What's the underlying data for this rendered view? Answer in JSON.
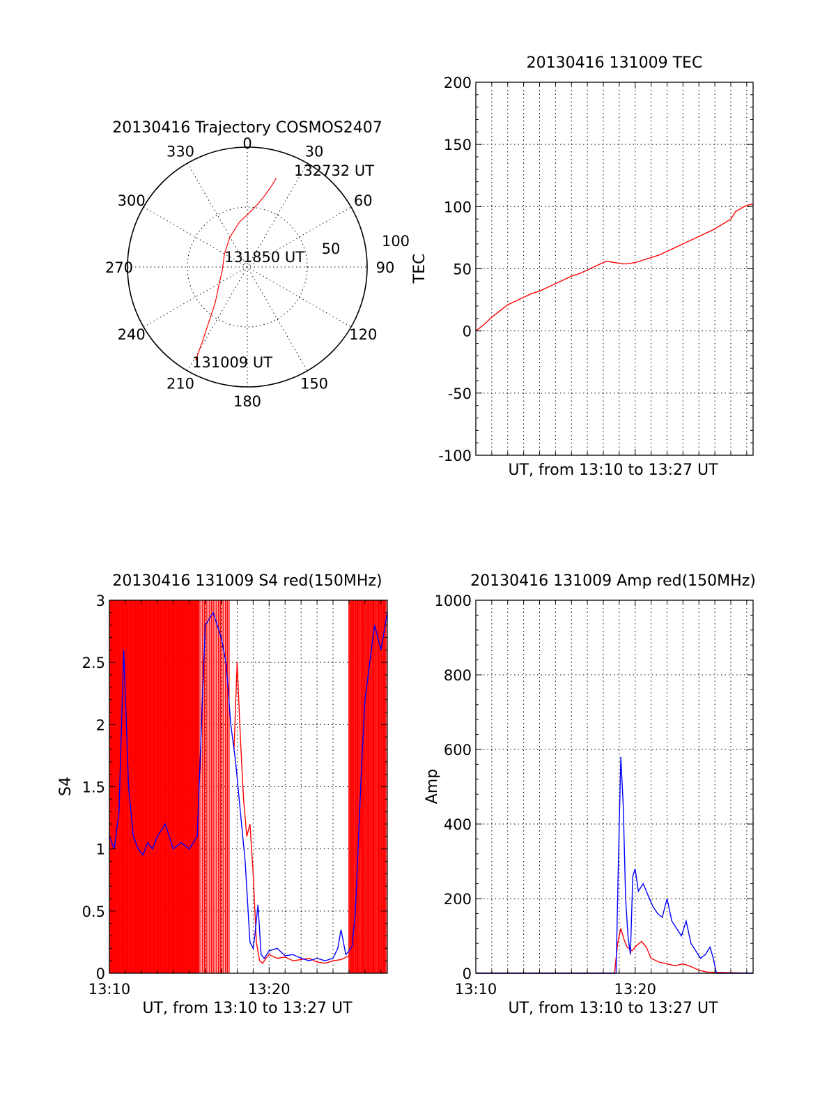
{
  "colors": {
    "red": "#ff0000",
    "blue": "#0000ff",
    "axis": "#000000",
    "background": "#ffffff"
  },
  "chart_data": [
    {
      "id": "trajectory",
      "type": "scatter",
      "polar": true,
      "title": "20130416 Trajectory COSMOS2407",
      "angle_labels": [
        "0",
        "30",
        "60",
        "90",
        "120",
        "150",
        "180",
        "210",
        "240",
        "270",
        "300",
        "330"
      ],
      "radial_labels": [
        "50",
        "100"
      ],
      "series": [
        {
          "color": "#ff0000",
          "points": [
            [
              209,
              89
            ],
            [
              211,
              73
            ],
            [
              215,
              56
            ],
            [
              222,
              40
            ],
            [
              240,
              27
            ],
            [
              263,
              21
            ],
            [
              300,
              22
            ],
            [
              330,
              29
            ],
            [
              350,
              38
            ],
            [
              3,
              46
            ],
            [
              10,
              54
            ],
            [
              14,
              62
            ],
            [
              17,
              72
            ],
            [
              18,
              78
            ]
          ]
        }
      ],
      "annotations": [
        {
          "text": "131009 UT"
        },
        {
          "text": "131850 UT"
        },
        {
          "text": "132732 UT"
        }
      ]
    },
    {
      "id": "tec",
      "type": "line",
      "title": "20130416 131009 TEC",
      "xlabel": "UT, from 13:10 to 13:27 UT",
      "ylabel": "TEC",
      "xlim": [
        0,
        17.4
      ],
      "ylim": [
        -100,
        200
      ],
      "yticks": [
        "200",
        "150",
        "100",
        "50",
        "0",
        "-50",
        "-100"
      ],
      "grid": true,
      "series": [
        {
          "color": "#ff0000",
          "x": [
            0,
            0.5,
            1,
            1.5,
            2,
            2.5,
            3,
            3.5,
            4,
            4.5,
            5,
            5.5,
            6,
            6.5,
            7,
            7.5,
            8,
            8.2,
            8.7,
            9.2,
            9.5,
            10,
            10.5,
            11,
            11.5,
            12,
            12.5,
            13,
            13.5,
            14,
            14.5,
            15,
            15.5,
            16,
            16.3,
            16.7,
            17,
            17.4
          ],
          "y": [
            0,
            5,
            11,
            16,
            21,
            24,
            27,
            30,
            32,
            35,
            38,
            41,
            44,
            46,
            49,
            52,
            55,
            56,
            55,
            54,
            54,
            55,
            57,
            59,
            61,
            64,
            67,
            70,
            73,
            76,
            79,
            82,
            86,
            90,
            96,
            99,
            101,
            102
          ]
        }
      ]
    },
    {
      "id": "s4",
      "type": "line",
      "title": "20130416 131009 S4 red(150MHz)",
      "xlabel": "UT, from 13:10 to 13:27 UT",
      "ylabel": "S4",
      "xlim": [
        0,
        17.4
      ],
      "ylim": [
        0,
        3
      ],
      "yticks": [
        "3",
        "2.5",
        "2",
        "1.5",
        "1",
        "0.5",
        "0"
      ],
      "xticks": [
        {
          "x": 0,
          "label": "13:10"
        },
        {
          "x": 10,
          "label": "13:20"
        }
      ],
      "grid": true,
      "series": [
        {
          "color": "#ff0000",
          "x": [
            7.8,
            8.0,
            8.2,
            8.4,
            8.6,
            8.8,
            9.0,
            9.2,
            9.4,
            9.6,
            9.8,
            10.0,
            10.5,
            11.0,
            11.5,
            12.0,
            12.5,
            13.0,
            13.5,
            14.0,
            14.5,
            15.0,
            15.3,
            15.5,
            15.7,
            15.9
          ],
          "y": [
            1.8,
            2.5,
            1.9,
            1.4,
            1.1,
            1.2,
            0.8,
            0.25,
            0.1,
            0.08,
            0.12,
            0.15,
            0.12,
            0.13,
            0.1,
            0.11,
            0.12,
            0.09,
            0.08,
            0.1,
            0.11,
            0.14,
            0.22,
            0.4,
            1.0,
            2.0
          ]
        },
        {
          "color": "#0000ff",
          "x": [
            0,
            0.3,
            0.6,
            0.9,
            1.2,
            1.5,
            1.8,
            2.1,
            2.4,
            2.7,
            3.0,
            3.5,
            4.0,
            4.5,
            5.0,
            5.5,
            6.0,
            6.5,
            7.0,
            7.3,
            7.6,
            7.9,
            8.2,
            8.5,
            8.8,
            9.0,
            9.1,
            9.3,
            9.5,
            9.7,
            10.0,
            10.5,
            11.0,
            11.5,
            12.0,
            12.5,
            13.0,
            13.5,
            14.0,
            14.3,
            14.5,
            14.8,
            15.0,
            15.2,
            15.4,
            15.6,
            15.8,
            16.0,
            16.3,
            16.6,
            17.0,
            17.4
          ],
          "y": [
            1.1,
            1.0,
            1.3,
            2.6,
            1.5,
            1.1,
            1.0,
            0.95,
            1.05,
            1.0,
            1.1,
            1.2,
            1.0,
            1.05,
            1.0,
            1.1,
            2.8,
            2.9,
            2.7,
            2.5,
            2.0,
            1.7,
            1.3,
            0.9,
            0.25,
            0.2,
            0.3,
            0.55,
            0.15,
            0.12,
            0.18,
            0.2,
            0.14,
            0.15,
            0.12,
            0.1,
            0.12,
            0.1,
            0.12,
            0.2,
            0.35,
            0.15,
            0.18,
            0.22,
            0.5,
            1.1,
            1.7,
            2.2,
            2.5,
            2.8,
            2.6,
            2.9
          ]
        }
      ]
    },
    {
      "id": "amp",
      "type": "line",
      "title": "20130416 131009 Amp red(150MHz)",
      "xlabel": "UT, from 13:10 to 13:27 UT",
      "ylabel": "Amp",
      "xlim": [
        0,
        17.4
      ],
      "ylim": [
        0,
        1000
      ],
      "yticks": [
        "1000",
        "800",
        "600",
        "400",
        "200",
        "0"
      ],
      "xticks": [
        {
          "x": 0,
          "label": "13:10"
        },
        {
          "x": 10,
          "label": "13:20"
        }
      ],
      "grid": true,
      "series": [
        {
          "color": "#ff0000",
          "x": [
            0,
            8.7,
            8.9,
            9.1,
            9.3,
            9.5,
            9.8,
            10.1,
            10.4,
            10.7,
            11.0,
            11.5,
            12.0,
            12.5,
            13.0,
            13.5,
            14.0,
            14.5,
            17.4
          ],
          "y": [
            0,
            0,
            80,
            120,
            90,
            70,
            60,
            75,
            85,
            70,
            40,
            30,
            25,
            20,
            25,
            18,
            8,
            3,
            0
          ]
        },
        {
          "color": "#0000ff",
          "x": [
            0,
            8.8,
            8.95,
            9.1,
            9.25,
            9.4,
            9.55,
            9.7,
            9.85,
            10.0,
            10.2,
            10.5,
            10.8,
            11.1,
            11.4,
            11.7,
            12.0,
            12.3,
            12.6,
            12.9,
            13.2,
            13.5,
            13.8,
            14.1,
            14.4,
            14.7,
            14.9,
            15.1,
            17.4
          ],
          "y": [
            0,
            0,
            300,
            580,
            450,
            200,
            100,
            50,
            260,
            280,
            220,
            240,
            210,
            180,
            160,
            150,
            200,
            140,
            120,
            100,
            140,
            80,
            60,
            40,
            50,
            70,
            40,
            0,
            0
          ]
        }
      ]
    }
  ]
}
